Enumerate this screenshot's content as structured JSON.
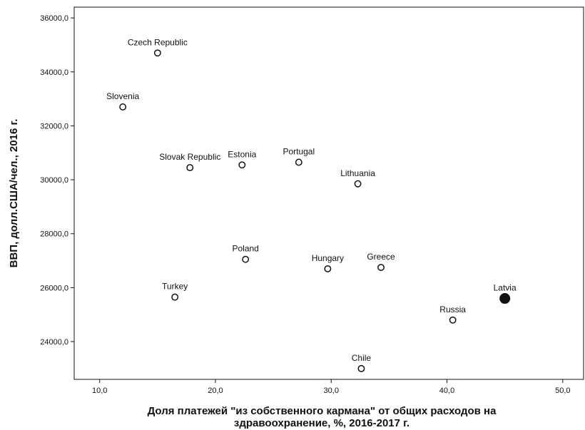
{
  "chart_data": {
    "type": "scatter",
    "xlabel": "Доля платежей \"из собственного кармана\" от общих расходов на здравоохранение, %, 2016-2017 г.",
    "xlabel_lines": [
      "Доля платежей \"из собственного кармана\" от общих расходов на",
      "здравоохранение, %, 2016-2017 г."
    ],
    "ylabel": "ВВП, долл.США/чел., 2016 г.",
    "xlim": [
      7.8,
      51.8
    ],
    "ylim": [
      22600,
      36400
    ],
    "x_ticks": [
      10,
      20,
      30,
      40,
      50
    ],
    "x_tick_labels": [
      "10,0",
      "20,0",
      "30,0",
      "40,0",
      "50,0"
    ],
    "y_ticks": [
      24000,
      26000,
      28000,
      30000,
      32000,
      34000,
      36000
    ],
    "y_tick_labels": [
      "24000,0",
      "26000,0",
      "28000,0",
      "30000,0",
      "32000,0",
      "34000,0",
      "36000,0"
    ],
    "grid": false,
    "points": [
      {
        "label": "Czech Republic",
        "x": 15.0,
        "y": 34700
      },
      {
        "label": "Slovenia",
        "x": 12.0,
        "y": 32700
      },
      {
        "label": "Slovak Republic",
        "x": 17.8,
        "y": 30450
      },
      {
        "label": "Estonia",
        "x": 22.3,
        "y": 30550
      },
      {
        "label": "Portugal",
        "x": 27.2,
        "y": 30650
      },
      {
        "label": "Lithuania",
        "x": 32.3,
        "y": 29850
      },
      {
        "label": "Poland",
        "x": 22.6,
        "y": 27050
      },
      {
        "label": "Hungary",
        "x": 29.7,
        "y": 26700
      },
      {
        "label": "Greece",
        "x": 34.3,
        "y": 26750
      },
      {
        "label": "Turkey",
        "x": 16.5,
        "y": 25650
      },
      {
        "label": "Latvia",
        "x": 45.0,
        "y": 25600,
        "highlight": true
      },
      {
        "label": "Russia",
        "x": 40.5,
        "y": 24800
      },
      {
        "label": "Chile",
        "x": 32.6,
        "y": 23000
      }
    ]
  }
}
